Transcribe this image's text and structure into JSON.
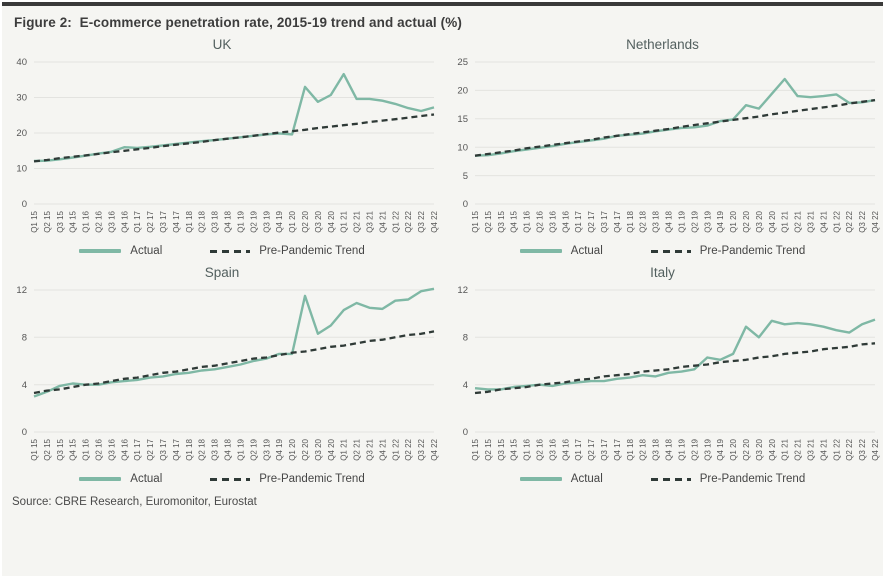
{
  "header": {
    "title": "Figure 2:  E-commerce penetration rate, 2015-19 trend and actual (%)"
  },
  "legend": {
    "actual_label": "Actual",
    "trend_label": "Pre-Pandemic Trend"
  },
  "footer": {
    "source": "Source: CBRE Research, Euromonitor, Eurostat"
  },
  "colors": {
    "actual": "#7fb8a5",
    "trend": "#2f3a37",
    "background": "#f5f5f2",
    "gridline": "#e3e3e0",
    "top_bar": "#3a3a3a",
    "tick_text": "#565656",
    "panel_title_text": "#53605f"
  },
  "categories": [
    "Q1 15",
    "Q2 15",
    "Q3 15",
    "Q4 15",
    "Q1 16",
    "Q2 16",
    "Q3 16",
    "Q4 16",
    "Q1 17",
    "Q2 17",
    "Q3 17",
    "Q4 17",
    "Q1 18",
    "Q2 18",
    "Q3 18",
    "Q4 18",
    "Q1 19",
    "Q2 19",
    "Q3 19",
    "Q4 19",
    "Q1 20",
    "Q2 20",
    "Q3 20",
    "Q4 20",
    "Q1 21",
    "Q2 21",
    "Q3 21",
    "Q4 21",
    "Q1 22",
    "Q2 22",
    "Q3 22",
    "Q4 22"
  ],
  "chart_data": [
    {
      "type": "line",
      "title": "UK",
      "ylim": [
        0,
        40
      ],
      "yticks": [
        0,
        10,
        20,
        30,
        40
      ],
      "grid": true,
      "legend_position": "bottom",
      "series": [
        {
          "name": "Actual",
          "values": [
            12.1,
            12.2,
            12.6,
            13.1,
            13.6,
            14.2,
            14.7,
            16.0,
            15.8,
            16.1,
            16.5,
            16.9,
            17.3,
            17.7,
            18.0,
            18.4,
            18.8,
            19.2,
            19.6,
            19.9,
            19.6,
            33.0,
            28.8,
            30.7,
            36.6,
            29.6,
            29.6,
            29.1,
            28.2,
            27.0,
            26.2,
            27.2
          ]
        },
        {
          "name": "Pre-Pandemic Trend",
          "values": [
            12.0,
            12.4,
            12.9,
            13.3,
            13.7,
            14.1,
            14.6,
            15.0,
            15.4,
            15.8,
            16.3,
            16.7,
            17.1,
            17.5,
            18.0,
            18.4,
            18.8,
            19.2,
            19.7,
            20.1,
            20.5,
            20.9,
            21.4,
            21.8,
            22.2,
            22.6,
            23.1,
            23.5,
            23.9,
            24.3,
            24.8,
            25.2
          ]
        }
      ]
    },
    {
      "type": "line",
      "title": "Netherlands",
      "ylim": [
        0,
        25
      ],
      "yticks": [
        0,
        5,
        10,
        15,
        20,
        25
      ],
      "grid": true,
      "legend_position": "bottom",
      "series": [
        {
          "name": "Actual",
          "values": [
            8.5,
            8.6,
            8.9,
            9.3,
            9.6,
            9.9,
            10.2,
            10.6,
            10.9,
            11.2,
            11.5,
            12.0,
            12.2,
            12.4,
            12.8,
            13.1,
            13.4,
            13.5,
            13.8,
            14.6,
            14.9,
            17.4,
            16.8,
            19.4,
            22.0,
            19.0,
            18.8,
            19.0,
            19.3,
            17.8,
            17.9,
            18.3
          ]
        },
        {
          "name": "Pre-Pandemic Trend",
          "values": [
            8.5,
            8.8,
            9.1,
            9.4,
            9.8,
            10.1,
            10.4,
            10.7,
            11.0,
            11.3,
            11.7,
            12.0,
            12.3,
            12.6,
            12.9,
            13.2,
            13.6,
            13.9,
            14.2,
            14.5,
            14.8,
            15.1,
            15.4,
            15.8,
            16.1,
            16.4,
            16.7,
            17.0,
            17.3,
            17.7,
            18.0,
            18.3
          ]
        }
      ]
    },
    {
      "type": "line",
      "title": "Spain",
      "ylim": [
        0,
        12
      ],
      "yticks": [
        0,
        4,
        8,
        12
      ],
      "grid": true,
      "legend_position": "bottom",
      "series": [
        {
          "name": "Actual",
          "values": [
            3.0,
            3.4,
            3.9,
            4.1,
            4.0,
            4.0,
            4.2,
            4.3,
            4.4,
            4.6,
            4.7,
            4.9,
            5.0,
            5.2,
            5.3,
            5.5,
            5.7,
            6.0,
            6.2,
            6.6,
            6.6,
            11.5,
            8.3,
            9.0,
            10.3,
            10.9,
            10.5,
            10.4,
            11.1,
            11.2,
            11.9,
            12.1
          ]
        },
        {
          "name": "Pre-Pandemic Trend",
          "values": [
            3.3,
            3.5,
            3.6,
            3.8,
            4.0,
            4.1,
            4.3,
            4.5,
            4.6,
            4.8,
            5.0,
            5.1,
            5.3,
            5.5,
            5.6,
            5.8,
            6.0,
            6.2,
            6.3,
            6.5,
            6.7,
            6.8,
            7.0,
            7.2,
            7.3,
            7.5,
            7.7,
            7.8,
            8.0,
            8.2,
            8.3,
            8.5
          ]
        }
      ]
    },
    {
      "type": "line",
      "title": "Italy",
      "ylim": [
        0,
        12
      ],
      "yticks": [
        0,
        4,
        8,
        12
      ],
      "grid": true,
      "legend_position": "bottom",
      "series": [
        {
          "name": "Actual",
          "values": [
            3.7,
            3.6,
            3.6,
            3.8,
            3.9,
            4.0,
            3.9,
            4.1,
            4.2,
            4.3,
            4.3,
            4.5,
            4.6,
            4.8,
            4.7,
            5.0,
            5.1,
            5.3,
            6.3,
            6.1,
            6.6,
            8.9,
            8.0,
            9.4,
            9.1,
            9.2,
            9.1,
            8.9,
            8.6,
            8.4,
            9.1,
            9.5
          ]
        },
        {
          "name": "Pre-Pandemic Trend",
          "values": [
            3.3,
            3.4,
            3.6,
            3.7,
            3.8,
            4.0,
            4.1,
            4.2,
            4.4,
            4.5,
            4.7,
            4.8,
            4.9,
            5.1,
            5.2,
            5.3,
            5.5,
            5.6,
            5.7,
            5.9,
            6.0,
            6.1,
            6.3,
            6.4,
            6.6,
            6.7,
            6.8,
            7.0,
            7.1,
            7.2,
            7.4,
            7.5
          ]
        }
      ]
    }
  ]
}
